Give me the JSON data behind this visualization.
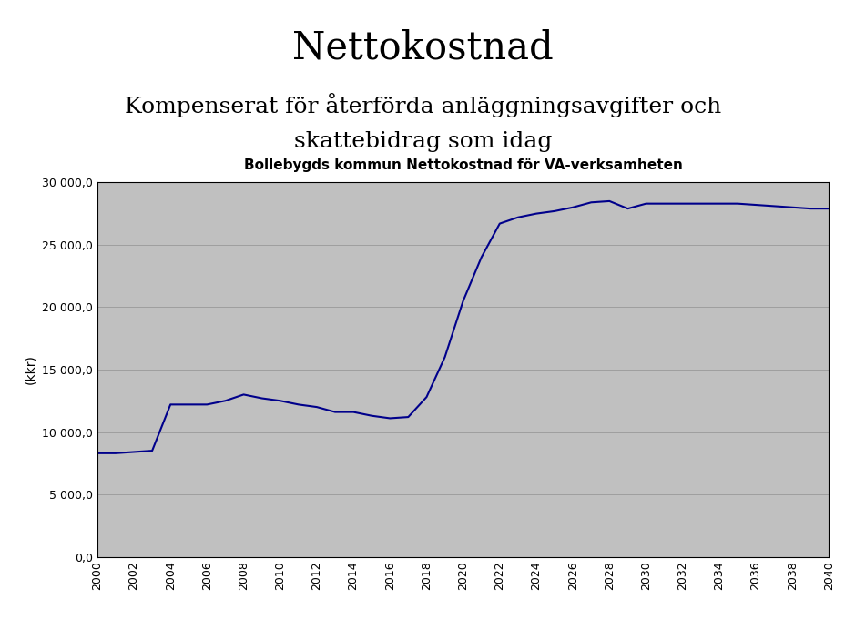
{
  "title": "Nettokostnad",
  "subtitle1": "Kompenserat för återförda anläggningsavgifter och",
  "subtitle2": "skattebidrag som idag",
  "chart_title": "Bollebygds kommun Nettokostnad för VA-verksamheten",
  "ylabel": "(kkr)",
  "plot_bg_color": "#c0c0c0",
  "outer_bg_color": "#ffffff",
  "line_color": "#00008B",
  "line_width": 1.5,
  "ylim": [
    0,
    30000
  ],
  "yticks": [
    0,
    5000,
    10000,
    15000,
    20000,
    25000,
    30000
  ],
  "ytick_labels": [
    "0,0",
    "5 000,0",
    "10 000,0",
    "15 000,0",
    "20 000,0",
    "25 000,0",
    "30 000,0"
  ],
  "xlim": [
    2000,
    2040
  ],
  "xticks": [
    2000,
    2002,
    2004,
    2006,
    2008,
    2010,
    2012,
    2014,
    2016,
    2018,
    2020,
    2022,
    2024,
    2026,
    2028,
    2030,
    2032,
    2034,
    2036,
    2038,
    2040
  ],
  "years": [
    2000,
    2001,
    2002,
    2003,
    2004,
    2005,
    2006,
    2007,
    2008,
    2009,
    2010,
    2011,
    2012,
    2013,
    2014,
    2015,
    2016,
    2017,
    2018,
    2019,
    2020,
    2021,
    2022,
    2023,
    2024,
    2025,
    2026,
    2027,
    2028,
    2029,
    2030,
    2031,
    2032,
    2033,
    2034,
    2035,
    2036,
    2037,
    2038,
    2039,
    2040
  ],
  "values": [
    8300,
    8300,
    8400,
    8500,
    12200,
    12200,
    12200,
    12500,
    13000,
    12700,
    12500,
    12200,
    12000,
    11600,
    11600,
    11300,
    11100,
    11200,
    12800,
    16000,
    20500,
    24000,
    26700,
    27200,
    27500,
    27700,
    28000,
    28400,
    28500,
    27900,
    28300,
    28300,
    28300,
    28300,
    28300,
    28300,
    28200,
    28100,
    28000,
    27900,
    27900
  ],
  "title_fontsize": 30,
  "subtitle_fontsize": 18,
  "chart_title_fontsize": 11
}
